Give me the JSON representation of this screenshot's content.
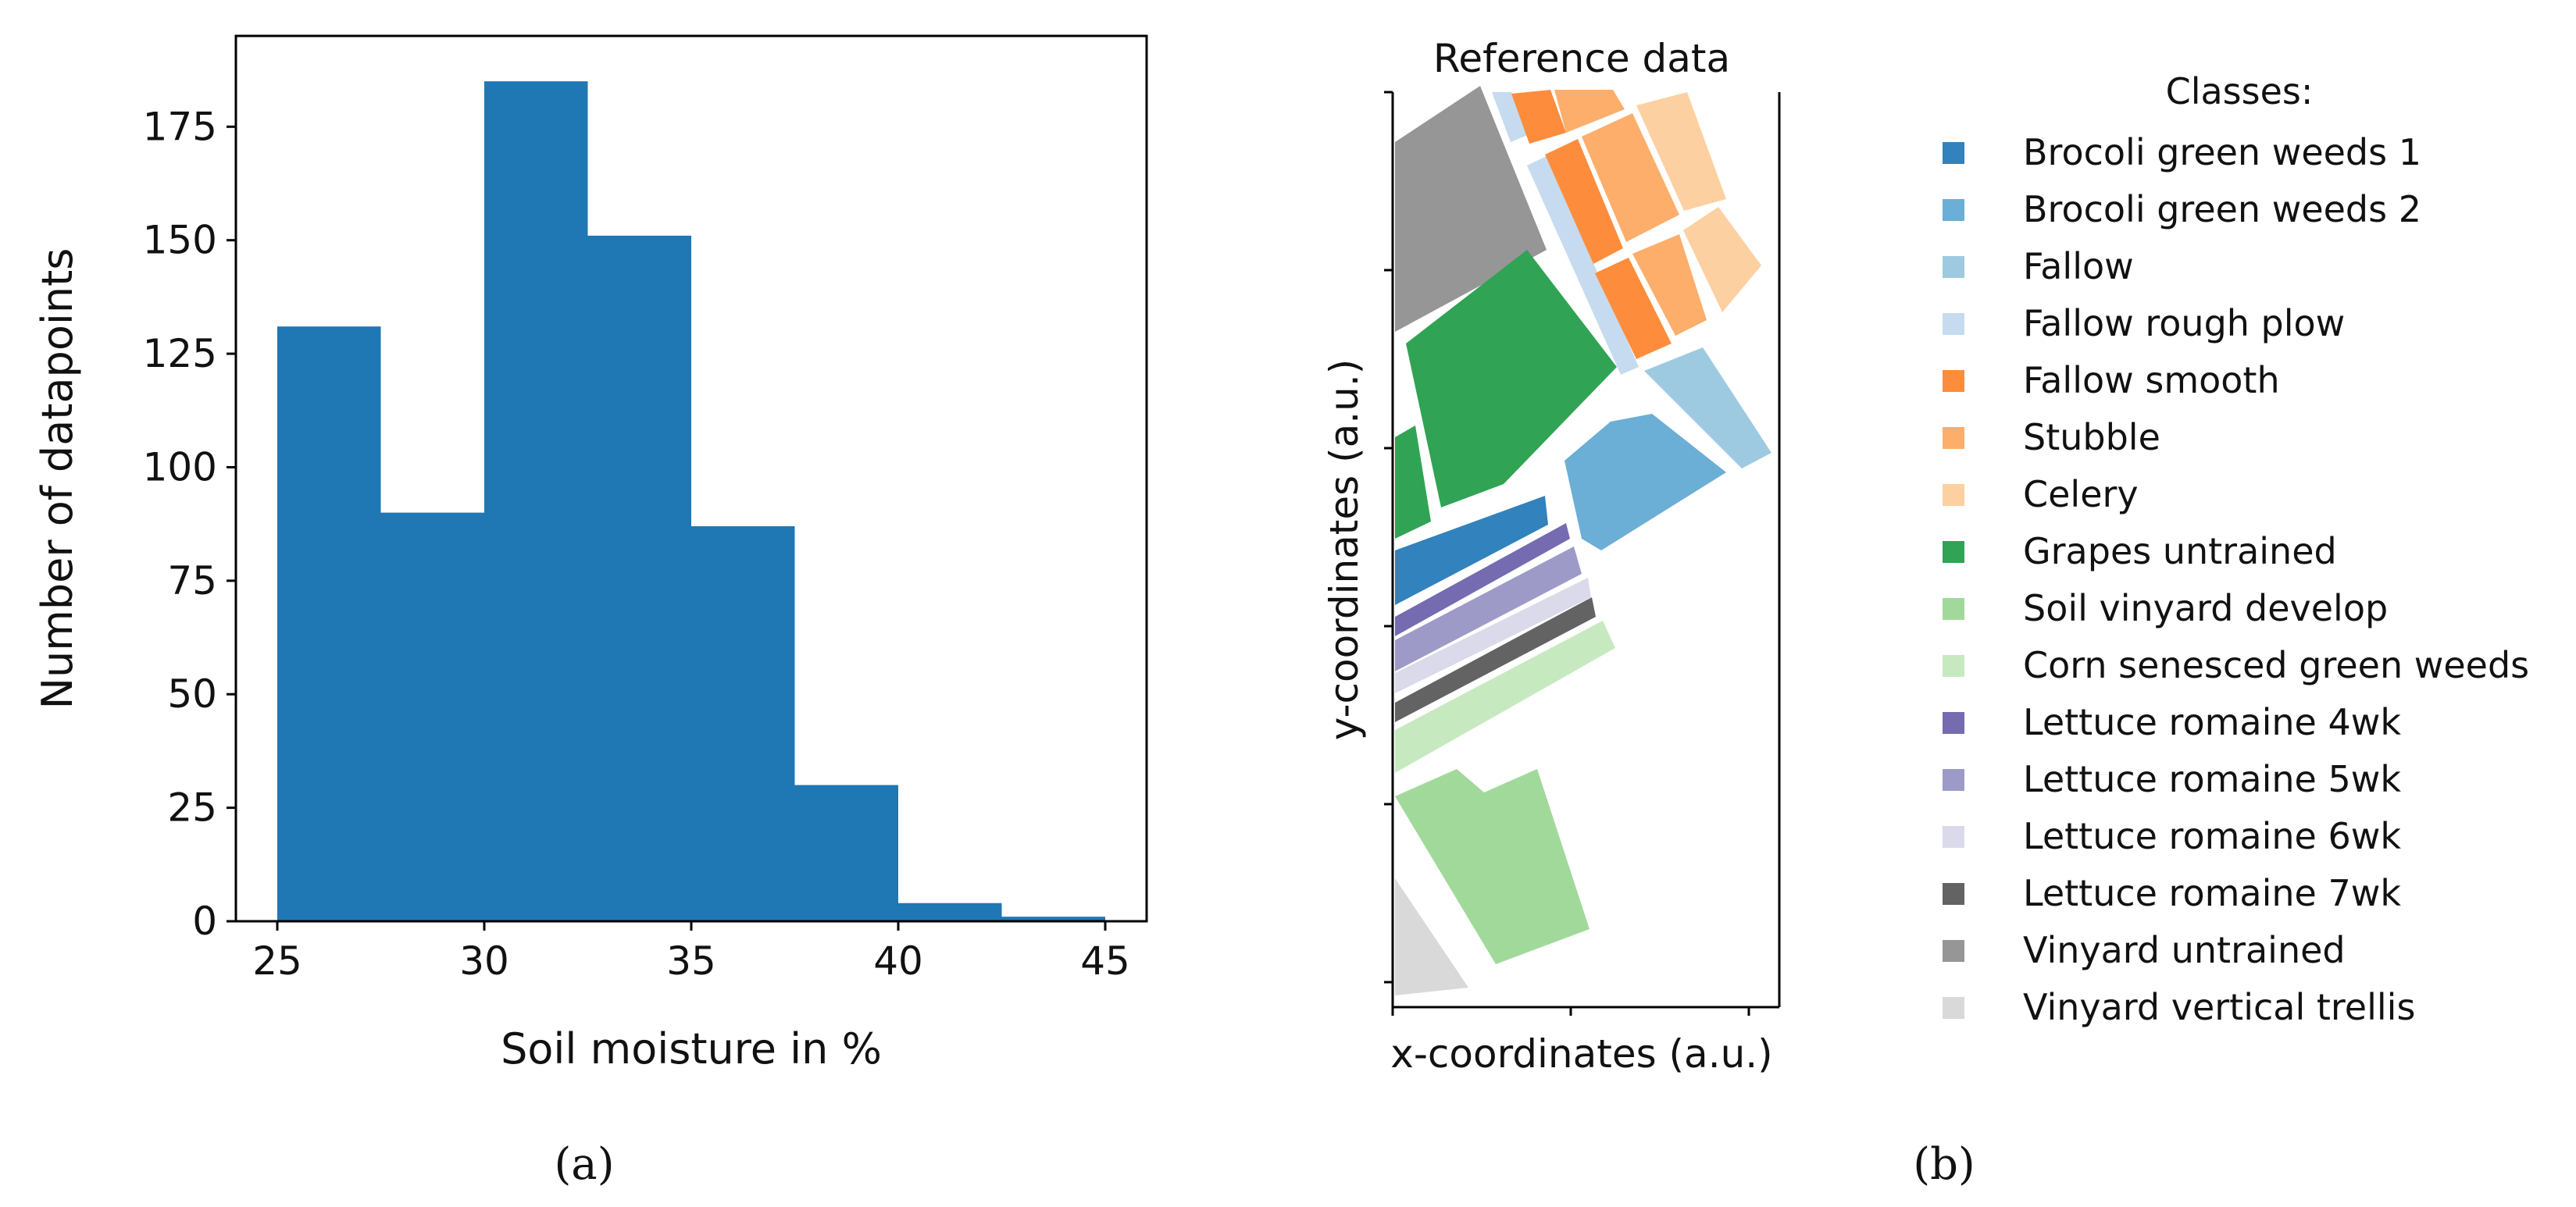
{
  "chart_data": [
    {
      "type": "bar",
      "panel_label": "(a)",
      "xlabel": "Soil moisture in %",
      "ylabel": "Number of datapoints",
      "bin_edges": [
        25,
        27.5,
        30,
        32.5,
        35,
        37.5,
        40,
        42.5,
        45
      ],
      "values": [
        131,
        90,
        185,
        151,
        87,
        30,
        4,
        1
      ],
      "xlim": [
        24,
        46
      ],
      "ylim": [
        0,
        195
      ],
      "xticks": [
        25,
        30,
        35,
        40,
        45
      ],
      "yticks": [
        0,
        25,
        50,
        75,
        100,
        125,
        150,
        175
      ],
      "bar_color": "#1f77b4",
      "grid": false
    },
    {
      "type": "heatmap",
      "panel_label": "(b)",
      "title": "Reference data",
      "xlabel": "x-coordinates (a.u.)",
      "ylabel": "y-coordinates (a.u.)",
      "legend_title": "Classes:",
      "legend_position": "right",
      "classes": [
        {
          "name": "Brocoli green weeds 1",
          "color": "#3182bd"
        },
        {
          "name": "Brocoli green weeds 2",
          "color": "#6baed6"
        },
        {
          "name": "Fallow",
          "color": "#9ecae1"
        },
        {
          "name": "Fallow rough plow",
          "color": "#c6dbef"
        },
        {
          "name": "Fallow smooth",
          "color": "#fd8d3c"
        },
        {
          "name": "Stubble",
          "color": "#fdae6b"
        },
        {
          "name": "Celery",
          "color": "#fdd0a2"
        },
        {
          "name": "Grapes untrained",
          "color": "#31a354"
        },
        {
          "name": "Soil vinyard develop",
          "color": "#a1d99b"
        },
        {
          "name": "Corn senesced green weeds",
          "color": "#c7e9c0"
        },
        {
          "name": "Lettuce romaine 4wk",
          "color": "#756bb1"
        },
        {
          "name": "Lettuce romaine 5wk",
          "color": "#9e9ac8"
        },
        {
          "name": "Lettuce romaine 6wk",
          "color": "#dadaeb"
        },
        {
          "name": "Lettuce romaine 7wk",
          "color": "#636363"
        },
        {
          "name": "Vinyard untrained",
          "color": "#969696"
        },
        {
          "name": "Vinyard vertical trellis",
          "color": "#d9d9d9"
        }
      ]
    }
  ]
}
